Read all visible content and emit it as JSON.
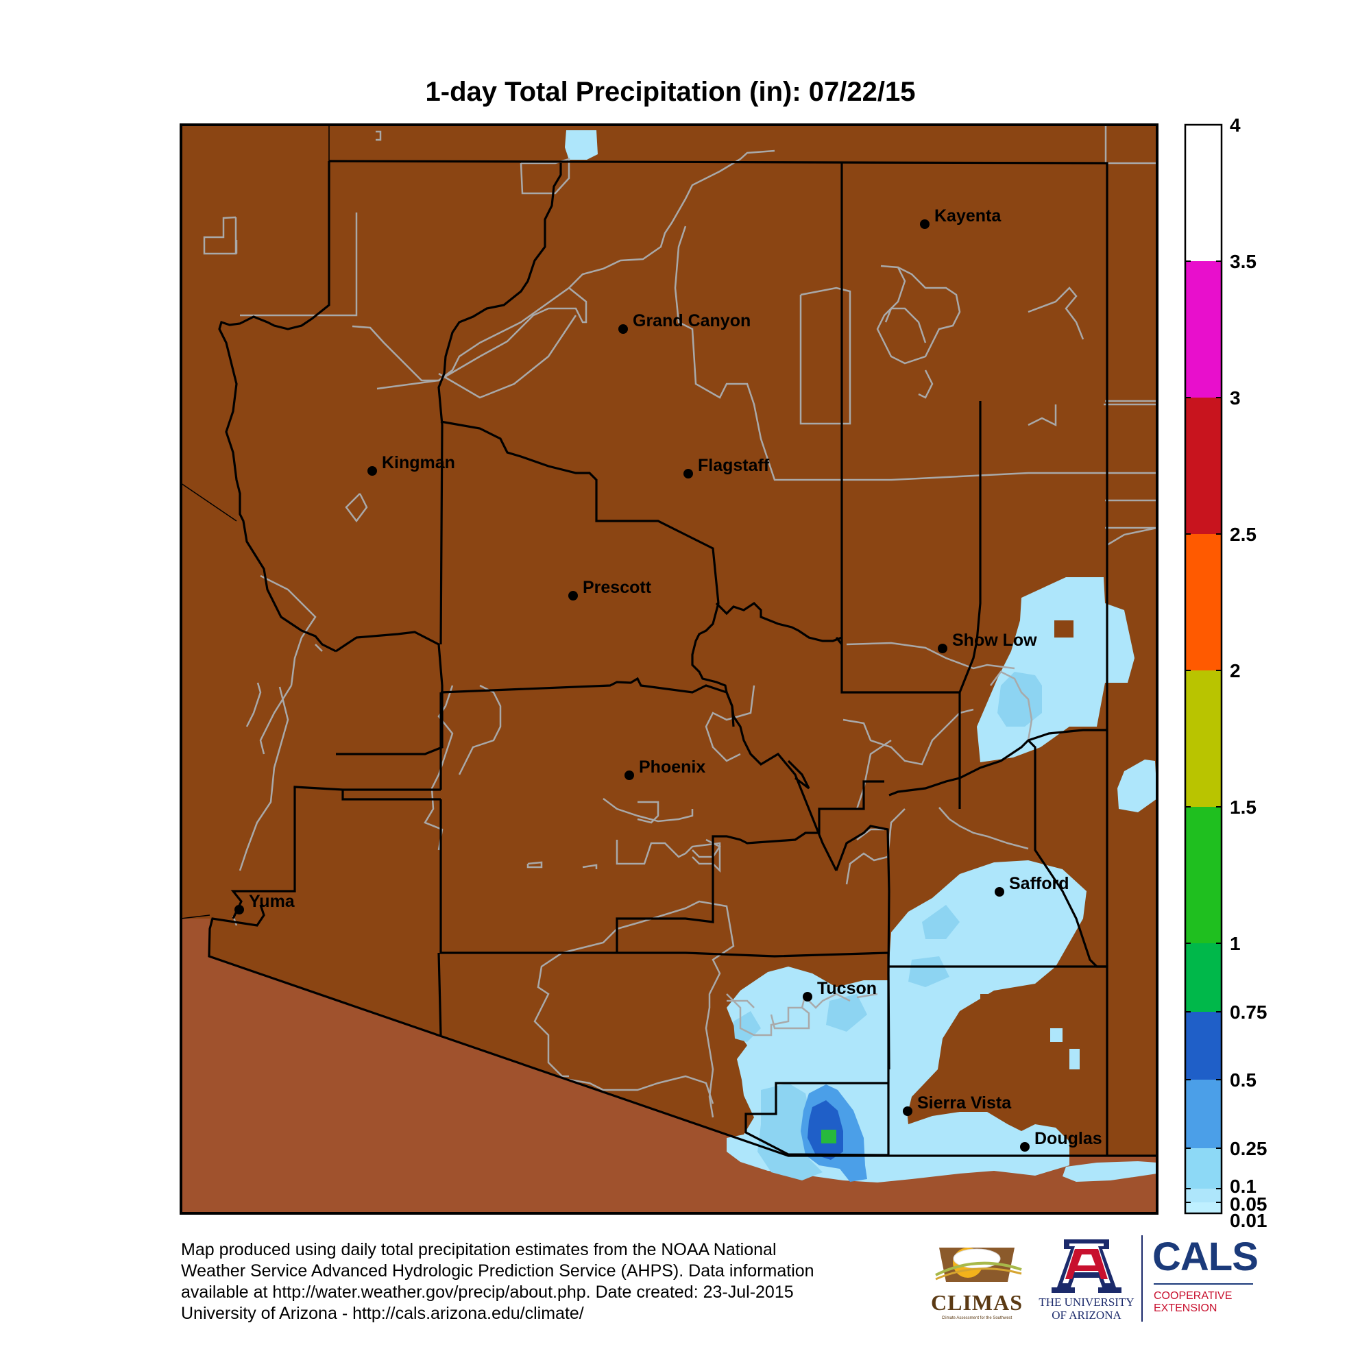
{
  "title": "1-day Total Precipitation (in): 07/22/15",
  "colors": {
    "dry_land": "#8b4513",
    "mexico": "#a0522d",
    "light_precip": "#aee6fb",
    "moderate_precip": "#8dd4f2",
    "heavy_precip": "#4b9fe8",
    "very_heavy_precip": "#1f5fc8",
    "peak_precip": "#27b93c"
  },
  "cities": [
    {
      "id": "kayenta",
      "label": "Kayenta"
    },
    {
      "id": "grand-canyon",
      "label": "Grand Canyon"
    },
    {
      "id": "kingman",
      "label": "Kingman"
    },
    {
      "id": "flagstaff",
      "label": "Flagstaff"
    },
    {
      "id": "prescott",
      "label": "Prescott"
    },
    {
      "id": "show-low",
      "label": "Show Low"
    },
    {
      "id": "phoenix",
      "label": "Phoenix"
    },
    {
      "id": "safford",
      "label": "Safford"
    },
    {
      "id": "yuma",
      "label": "Yuma"
    },
    {
      "id": "tucson",
      "label": "Tucson"
    },
    {
      "id": "sierra-vista",
      "label": "Sierra Vista"
    },
    {
      "id": "douglas",
      "label": "Douglas"
    }
  ],
  "legend": {
    "segments": [
      {
        "from": 0.01,
        "to": 0.05,
        "color": "#bff0ff"
      },
      {
        "from": 0.05,
        "to": 0.1,
        "color": "#aee6fb"
      },
      {
        "from": 0.1,
        "to": 0.25,
        "color": "#8dd9f6"
      },
      {
        "from": 0.25,
        "to": 0.5,
        "color": "#4b9fe8"
      },
      {
        "from": 0.5,
        "to": 0.75,
        "color": "#1f5fc8"
      },
      {
        "from": 0.75,
        "to": 1,
        "color": "#00b84a"
      },
      {
        "from": 1,
        "to": 1.5,
        "color": "#1fbf1f"
      },
      {
        "from": 1.5,
        "to": 2,
        "color": "#b9c400"
      },
      {
        "from": 2,
        "to": 2.5,
        "color": "#ff5a00"
      },
      {
        "from": 2.5,
        "to": 3,
        "color": "#c8141e"
      },
      {
        "from": 3,
        "to": 3.5,
        "color": "#e80fcc"
      },
      {
        "from": 3.5,
        "to": 4,
        "color": "#ffffff"
      }
    ],
    "ticks": [
      "4",
      "3.5",
      "3",
      "2.5",
      "2",
      "1.5",
      "1",
      "0.75",
      "0.5",
      "0.25",
      "0.1",
      "0.05",
      "0.01"
    ]
  },
  "footer": {
    "lines": [
      "Map produced using daily total precipitation estimates from the NOAA National",
      "Weather Service Advanced Hydrologic Prediction Service (AHPS). Data information",
      "available at http://water.weather.gov/precip/about.php. Date created: 23-Jul-2015",
      "University of Arizona - http://cals.arizona.edu/climate/"
    ]
  },
  "logos": {
    "climas": {
      "name": "CLIMAS",
      "tagline": "Climate Assessment for the Southwest"
    },
    "ua": {
      "line1": "THE UNIVERSITY",
      "line2": "OF ARIZONA"
    },
    "cals": {
      "name": "CALS",
      "line1": "COOPERATIVE",
      "line2": "EXTENSION"
    }
  }
}
